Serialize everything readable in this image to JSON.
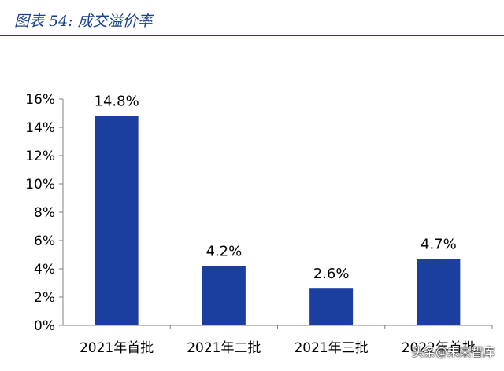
{
  "header": {
    "title": "图表 54:  成交溢价率"
  },
  "watermark": "头条@未来智库",
  "chart_data": {
    "type": "bar",
    "title": "成交溢价率",
    "categories": [
      "2021年首批",
      "2021年二批",
      "2021年三批",
      "2022年首批"
    ],
    "values": [
      14.8,
      4.2,
      2.6,
      4.7
    ],
    "data_labels": [
      "14.8%",
      "4.2%",
      "2.6%",
      "4.7%"
    ],
    "y_ticks": [
      "0%",
      "2%",
      "4%",
      "6%",
      "8%",
      "10%",
      "12%",
      "14%",
      "16%"
    ],
    "ylim": [
      0,
      16
    ],
    "xlabel": "",
    "ylabel": "",
    "grid": false,
    "bar_color": "#1a3f9e",
    "axis_color": "#808080"
  }
}
